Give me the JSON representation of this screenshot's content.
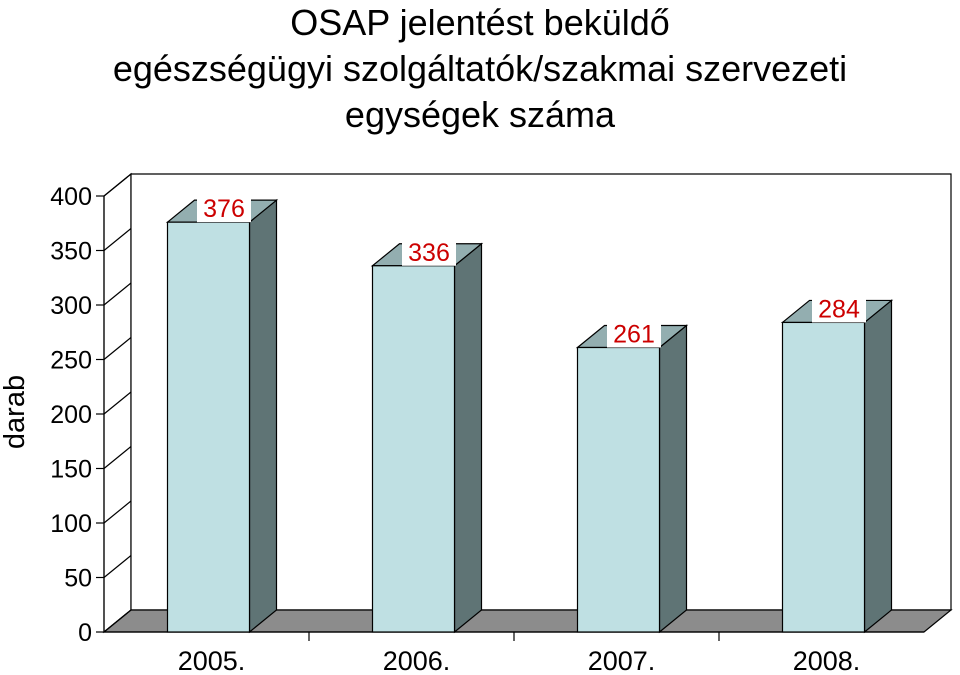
{
  "chart_data": {
    "type": "bar",
    "title_lines": [
      "OSAP jelentést beküldő",
      "egészségügyi szolgáltatók/szakmai szervezeti",
      "egységek száma"
    ],
    "xlabel": "",
    "ylabel": "darab",
    "categories": [
      "2005.",
      "2006.",
      "2007.",
      "2008."
    ],
    "values": [
      376,
      336,
      261,
      284
    ],
    "data_labels": [
      "376",
      "336",
      "261",
      "284"
    ],
    "ylim": [
      0,
      400
    ],
    "yticks": [
      0,
      50,
      100,
      150,
      200,
      250,
      300,
      350,
      400
    ],
    "three_d": true,
    "grid": false,
    "colors": {
      "bar_front": "#bfe0e3",
      "bar_side": "#5f7475",
      "bar_top": "#93aeb0",
      "floor": "#8c8c8c",
      "data_label": "#cc0000"
    }
  }
}
